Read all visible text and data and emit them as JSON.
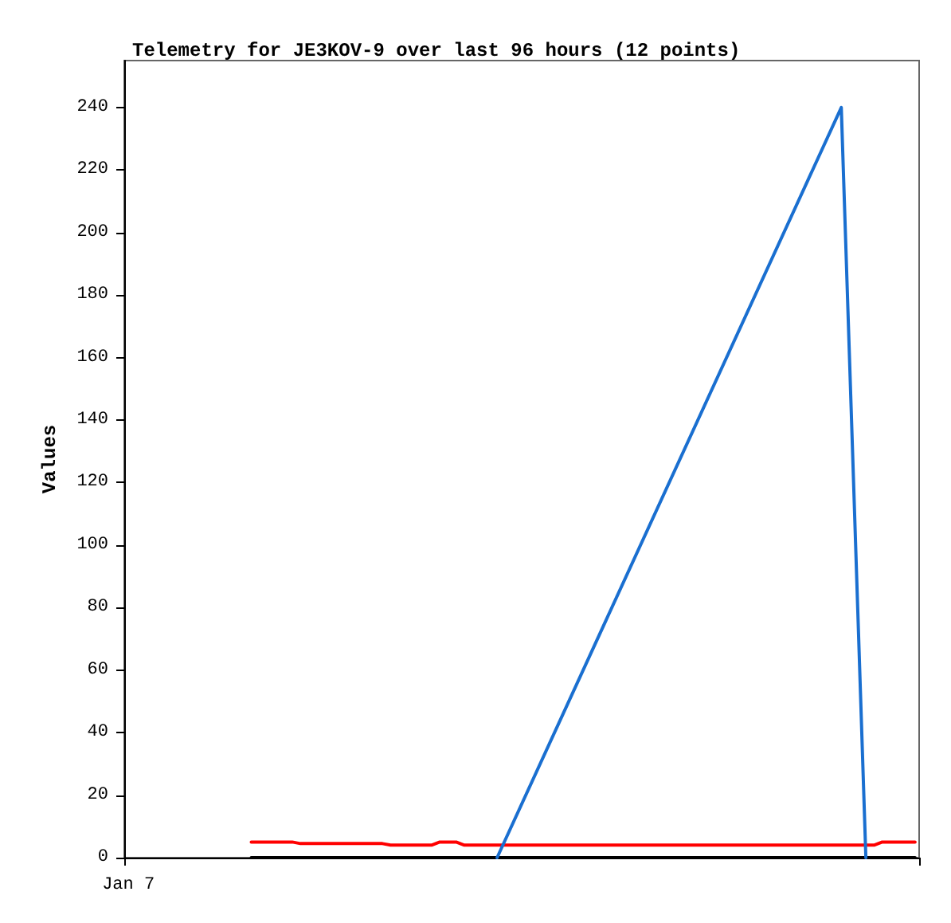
{
  "chart_data": {
    "type": "line",
    "title": "Telemetry for JE3KOV-9 over last 96 hours (12 points)",
    "ylabel": "Values",
    "categories": [
      "Jan 7",
      null,
      null,
      null,
      null,
      null,
      null,
      null,
      null,
      null,
      null,
      null,
      null,
      null,
      null,
      null,
      null,
      null,
      null,
      null,
      null,
      null,
      null,
      null,
      null,
      null,
      null,
      null,
      null,
      null,
      null,
      null,
      null,
      null,
      null,
      null,
      null,
      null,
      null,
      null,
      null,
      null,
      null,
      null,
      null,
      null,
      null,
      null,
      null,
      null,
      null,
      null,
      null,
      null,
      null,
      null,
      null,
      null,
      null,
      null,
      null,
      null,
      null,
      null,
      null,
      null,
      null,
      null,
      null,
      null,
      null,
      null,
      null,
      null,
      null,
      null,
      null,
      null,
      null,
      null,
      null,
      null,
      null,
      null,
      null,
      null,
      null,
      null,
      null,
      null,
      null,
      null,
      null,
      null,
      null,
      null,
      null
    ],
    "ylim": [
      0,
      255
    ],
    "yticks": [
      0,
      20,
      40,
      60,
      80,
      100,
      120,
      140,
      160,
      180,
      200,
      220,
      240
    ],
    "grid": false,
    "marker": "none",
    "line_style": "solid",
    "series": [
      {
        "color": "#000000",
        "values": [
          null,
          null,
          null,
          null,
          null,
          null,
          null,
          null,
          null,
          null,
          null,
          null,
          null,
          null,
          null,
          0,
          null,
          null,
          null,
          null,
          null,
          null,
          null,
          null,
          null,
          null,
          null,
          null,
          null,
          null,
          null,
          null,
          null,
          null,
          null,
          null,
          null,
          null,
          null,
          null,
          null,
          null,
          null,
          null,
          null,
          null,
          null,
          null,
          null,
          null,
          null,
          null,
          null,
          null,
          null,
          null,
          null,
          null,
          null,
          null,
          null,
          null,
          null,
          null,
          null,
          null,
          null,
          null,
          null,
          null,
          null,
          null,
          null,
          null,
          null,
          null,
          null,
          null,
          null,
          null,
          null,
          null,
          null,
          null,
          null,
          null,
          null,
          null,
          null,
          null,
          null,
          null,
          null,
          null,
          null,
          null,
          0
        ]
      },
      {
        "color": "#ff0000",
        "values": [
          null,
          null,
          null,
          null,
          null,
          null,
          null,
          null,
          null,
          null,
          null,
          null,
          null,
          null,
          null,
          5,
          null,
          null,
          null,
          null,
          5,
          4.5,
          null,
          null,
          null,
          null,
          null,
          null,
          null,
          null,
          null,
          4.5,
          4,
          null,
          null,
          null,
          null,
          4,
          5,
          null,
          5,
          4,
          null,
          null,
          null,
          null,
          null,
          null,
          null,
          null,
          null,
          null,
          null,
          null,
          null,
          null,
          null,
          null,
          null,
          null,
          null,
          null,
          null,
          null,
          null,
          null,
          null,
          null,
          null,
          null,
          null,
          null,
          null,
          null,
          null,
          null,
          null,
          null,
          null,
          null,
          null,
          null,
          null,
          null,
          null,
          null,
          null,
          null,
          null,
          null,
          null,
          4,
          5,
          null,
          null,
          null,
          5
        ]
      },
      {
        "color": "#1a6fd0",
        "values": [
          null,
          null,
          null,
          null,
          null,
          null,
          null,
          null,
          null,
          null,
          null,
          null,
          null,
          null,
          null,
          null,
          null,
          null,
          null,
          null,
          null,
          null,
          null,
          null,
          null,
          null,
          null,
          null,
          null,
          null,
          null,
          null,
          null,
          null,
          null,
          null,
          null,
          null,
          null,
          null,
          null,
          null,
          null,
          null,
          null,
          0,
          null,
          null,
          null,
          null,
          null,
          null,
          null,
          null,
          null,
          null,
          null,
          null,
          null,
          null,
          null,
          null,
          null,
          null,
          null,
          null,
          null,
          null,
          null,
          null,
          null,
          null,
          null,
          null,
          null,
          null,
          null,
          null,
          null,
          null,
          null,
          null,
          null,
          null,
          null,
          null,
          null,
          240,
          null,
          null,
          0,
          null,
          null,
          null,
          null,
          null,
          null
        ]
      }
    ]
  }
}
